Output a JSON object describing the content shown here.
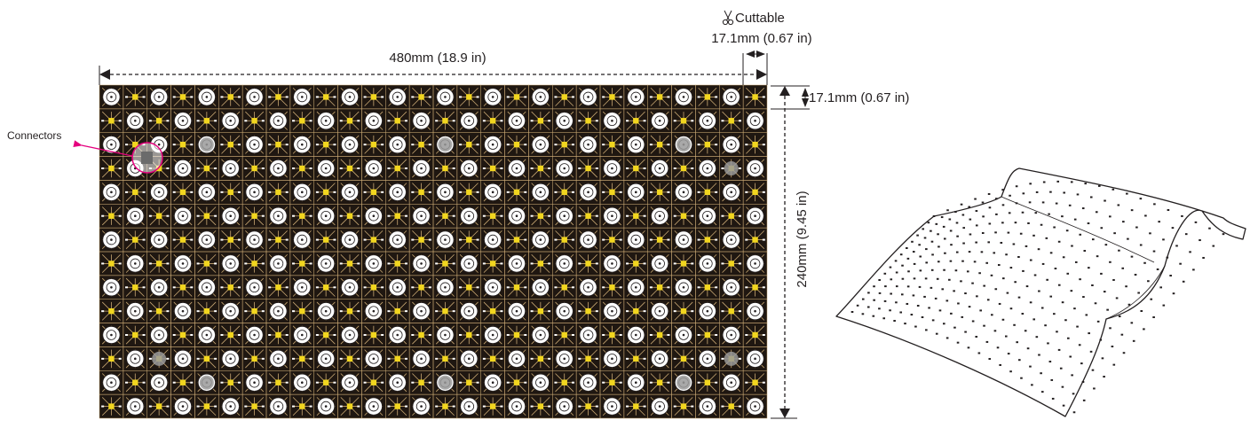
{
  "panel": {
    "columns": 28,
    "rows": 14,
    "colors": {
      "background": "#1f1711",
      "trace": "#c9a873",
      "pad_yellow": "#f2d61f",
      "pad_white": "#ffffff",
      "connector_highlight": "#e5007e",
      "mount_hole": "#9a9a9a"
    }
  },
  "labels": {
    "width_dimension": "480mm (18.9 in)",
    "height_dimension": "240mm (9.45 in)",
    "cell_dimension": "17.1mm (0.67 in)",
    "cuttable_dimension": "17.1mm (0.67 in)",
    "cuttable_label": "Cuttable",
    "connectors_label": "Connectors"
  },
  "icons": {
    "scissors": "scissors-icon"
  }
}
